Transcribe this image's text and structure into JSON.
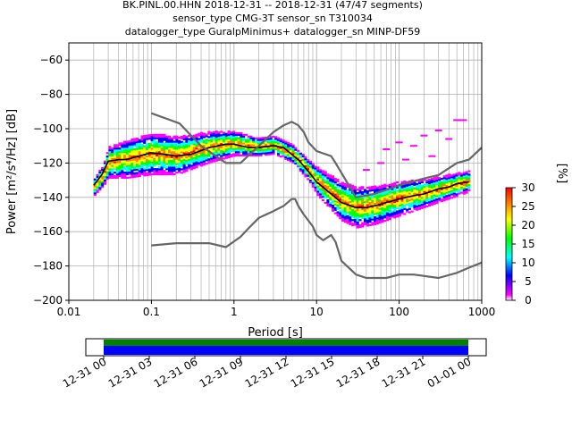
{
  "chart_data": [
    {
      "type": "heatmap",
      "title_lines": [
        "BK.PINL.00.HHN   2018-12-31 -- 2018-12-31  (47/47 segments)",
        "sensor_type CMG-3T sensor_sn T310034",
        "datalogger_type GuralpMinimus+ datalogger_sn MINP-DF59"
      ],
      "xlabel": "Period [s]",
      "ylabel": "Power [m²/s⁴/Hz] [dB]",
      "xscale": "log",
      "xlim": [
        0.01,
        1000
      ],
      "ylim": [
        -200,
        -50
      ],
      "x_ticks": [
        {
          "value": 0.01,
          "label": "0.01"
        },
        {
          "value": 0.1,
          "label": "0.1"
        },
        {
          "value": 1,
          "label": "1"
        },
        {
          "value": 10,
          "label": "10"
        },
        {
          "value": 100,
          "label": "100"
        },
        {
          "value": 1000,
          "label": "1000"
        }
      ],
      "y_ticks": [
        {
          "value": -60,
          "label": "−60"
        },
        {
          "value": -80,
          "label": "−80"
        },
        {
          "value": -100,
          "label": "−100"
        },
        {
          "value": -120,
          "label": "−120"
        },
        {
          "value": -140,
          "label": "−140"
        },
        {
          "value": -160,
          "label": "−160"
        },
        {
          "value": -180,
          "label": "−180"
        },
        {
          "value": -200,
          "label": "−200"
        }
      ],
      "grid": true,
      "colorbar": {
        "label": "[%]",
        "range": [
          0,
          30
        ],
        "ticks": [
          {
            "value": 0,
            "label": "0"
          },
          {
            "value": 5,
            "label": "5"
          },
          {
            "value": 10,
            "label": "10"
          },
          {
            "value": 15,
            "label": "15"
          },
          {
            "value": 20,
            "label": "20"
          },
          {
            "value": 25,
            "label": "25"
          },
          {
            "value": 30,
            "label": "30"
          }
        ],
        "colormap": [
          "#ffffff",
          "#ff00ff",
          "#0000ff",
          "#00ffff",
          "#00ff00",
          "#ffff00",
          "#ff8000",
          "#ff0000"
        ]
      },
      "series": [
        {
          "role": "mean",
          "color": "#000000",
          "points": [
            [
              0.02,
              -133
            ],
            [
              0.025,
              -127
            ],
            [
              0.03,
              -119
            ],
            [
              0.04,
              -118
            ],
            [
              0.05,
              -118
            ],
            [
              0.07,
              -116
            ],
            [
              0.1,
              -114
            ],
            [
              0.15,
              -115
            ],
            [
              0.2,
              -116
            ],
            [
              0.3,
              -115
            ],
            [
              0.5,
              -111
            ],
            [
              0.8,
              -109
            ],
            [
              1,
              -109
            ],
            [
              1.5,
              -111
            ],
            [
              2,
              -111
            ],
            [
              3,
              -110
            ],
            [
              4,
              -111
            ],
            [
              5,
              -115
            ],
            [
              6,
              -118
            ],
            [
              8,
              -125
            ],
            [
              10,
              -131
            ],
            [
              15,
              -138
            ],
            [
              20,
              -143
            ],
            [
              30,
              -146
            ],
            [
              40,
              -146
            ],
            [
              50,
              -145
            ],
            [
              70,
              -143
            ],
            [
              100,
              -141
            ],
            [
              150,
              -139
            ],
            [
              200,
              -138
            ],
            [
              300,
              -135
            ],
            [
              400,
              -134
            ],
            [
              500,
              -132
            ],
            [
              700,
              -131
            ]
          ]
        },
        {
          "role": "noise-model-high",
          "color": "#666666",
          "points": [
            [
              0.1,
              -91
            ],
            [
              0.17,
              -95
            ],
            [
              0.22,
              -97
            ],
            [
              0.4,
              -110
            ],
            [
              0.8,
              -120
            ],
            [
              1.2,
              -120
            ],
            [
              2,
              -110
            ],
            [
              3,
              -102
            ],
            [
              4,
              -98
            ],
            [
              5,
              -96
            ],
            [
              6,
              -98
            ],
            [
              7,
              -102
            ],
            [
              8,
              -108
            ],
            [
              10,
              -113
            ],
            [
              15,
              -116
            ],
            [
              17,
              -120
            ],
            [
              30,
              -140
            ],
            [
              50,
              -138
            ],
            [
              100,
              -133
            ],
            [
              200,
              -129
            ],
            [
              300,
              -127
            ],
            [
              500,
              -120
            ],
            [
              700,
              -118
            ],
            [
              1000,
              -111
            ]
          ]
        },
        {
          "role": "noise-model-low",
          "color": "#666666",
          "points": [
            [
              0.1,
              -168
            ],
            [
              0.2,
              -166.7
            ],
            [
              0.5,
              -166.7
            ],
            [
              0.8,
              -169
            ],
            [
              1.2,
              -163
            ],
            [
              1.5,
              -158
            ],
            [
              2,
              -152
            ],
            [
              3,
              -148
            ],
            [
              4,
              -145
            ],
            [
              5,
              -141
            ],
            [
              5.5,
              -141
            ],
            [
              6,
              -145
            ],
            [
              7,
              -150
            ],
            [
              9,
              -157
            ],
            [
              10,
              -162
            ],
            [
              12,
              -165
            ],
            [
              15,
              -162
            ],
            [
              17,
              -166
            ],
            [
              20,
              -177
            ],
            [
              30,
              -185
            ],
            [
              40,
              -187
            ],
            [
              60,
              -187
            ],
            [
              70,
              -187
            ],
            [
              100,
              -185
            ],
            [
              150,
              -185
            ],
            [
              300,
              -187
            ],
            [
              500,
              -184
            ],
            [
              700,
              -181
            ],
            [
              1000,
              -178
            ]
          ]
        }
      ],
      "density": [
        {
          "period": 0.02,
          "center": -134,
          "spread": 5
        },
        {
          "period": 0.025,
          "center": -128,
          "spread": 6
        },
        {
          "period": 0.03,
          "center": -120,
          "spread": 9
        },
        {
          "period": 0.05,
          "center": -118,
          "spread": 11
        },
        {
          "period": 0.1,
          "center": -115,
          "spread": 12
        },
        {
          "period": 0.2,
          "center": -116,
          "spread": 11
        },
        {
          "period": 0.5,
          "center": -111,
          "spread": 9
        },
        {
          "period": 1,
          "center": -109,
          "spread": 7
        },
        {
          "period": 2,
          "center": -111,
          "spread": 5
        },
        {
          "period": 3,
          "center": -110,
          "spread": 5
        },
        {
          "period": 5,
          "center": -115,
          "spread": 5
        },
        {
          "period": 8,
          "center": -125,
          "spread": 6
        },
        {
          "period": 10,
          "center": -131,
          "spread": 8
        },
        {
          "period": 15,
          "center": -138,
          "spread": 10
        },
        {
          "period": 20,
          "center": -143,
          "spread": 11
        },
        {
          "period": 30,
          "center": -146,
          "spread": 12
        },
        {
          "period": 50,
          "center": -145,
          "spread": 11
        },
        {
          "period": 100,
          "center": -141,
          "spread": 10
        },
        {
          "period": 200,
          "center": -138,
          "spread": 8
        },
        {
          "period": 400,
          "center": -134,
          "spread": 7
        },
        {
          "period": 700,
          "center": -131,
          "spread": 6
        }
      ],
      "outliers": [
        {
          "period": 70,
          "db": -112
        },
        {
          "period": 100,
          "db": -108
        },
        {
          "period": 150,
          "db": -110
        },
        {
          "period": 200,
          "db": -104
        },
        {
          "period": 300,
          "db": -101
        },
        {
          "period": 400,
          "db": -106
        },
        {
          "period": 500,
          "db": -95
        },
        {
          "period": 600,
          "db": -95
        },
        {
          "period": 250,
          "db": -116
        },
        {
          "period": 120,
          "db": -118
        },
        {
          "period": 60,
          "db": -120
        },
        {
          "period": 40,
          "db": -124
        }
      ]
    },
    {
      "type": "timeline",
      "role": "data-coverage",
      "x_ticks": [
        "12-31 00",
        "12-31 03",
        "12-31 06",
        "12-31 09",
        "12-31 12",
        "12-31 15",
        "12-31 18",
        "12-31 21",
        "01-01 00"
      ],
      "bands": [
        {
          "name": "coverage",
          "color": "#008000",
          "start_hour": 0,
          "end_hour": 24
        },
        {
          "name": "psd-segments",
          "color": "#0000ff",
          "start_hour": 0,
          "end_hour": 24
        }
      ]
    }
  ]
}
